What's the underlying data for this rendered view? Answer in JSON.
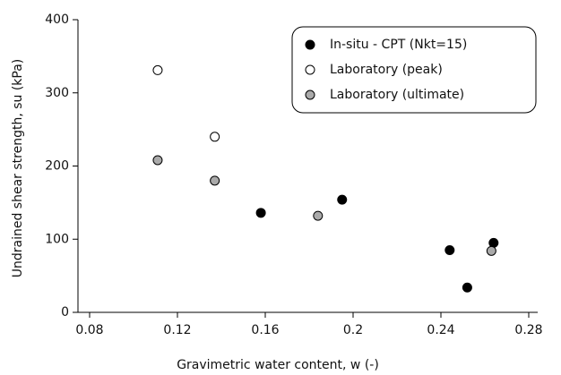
{
  "chart_data": {
    "type": "scatter",
    "x_label": "Gravimetric water content, w (-)",
    "y_label": "Undrained shear strength, su (kPa)",
    "xlim": [
      0.08,
      0.28
    ],
    "xticks": [
      0.08,
      0.12,
      0.16,
      0.2,
      0.24,
      0.28
    ],
    "ylim": [
      0,
      400
    ],
    "yticks": [
      0,
      100,
      200,
      300,
      400
    ],
    "legend": "upper right",
    "series": [
      {
        "name": "In-situ - CPT (Nkt=15)",
        "color": "#000000",
        "x": [
          0.158,
          0.195,
          0.244,
          0.252,
          0.264
        ],
        "values": [
          136,
          154,
          85,
          34,
          95
        ]
      },
      {
        "name": "Laboratory (peak)",
        "color": "#ffffff",
        "x": [
          0.111,
          0.137
        ],
        "values": [
          331,
          240
        ]
      },
      {
        "name": "Laboratory (ultimate)",
        "color": "#aaaaaa",
        "x": [
          0.111,
          0.137,
          0.184,
          0.263
        ],
        "values": [
          208,
          180,
          132,
          84
        ]
      }
    ]
  }
}
